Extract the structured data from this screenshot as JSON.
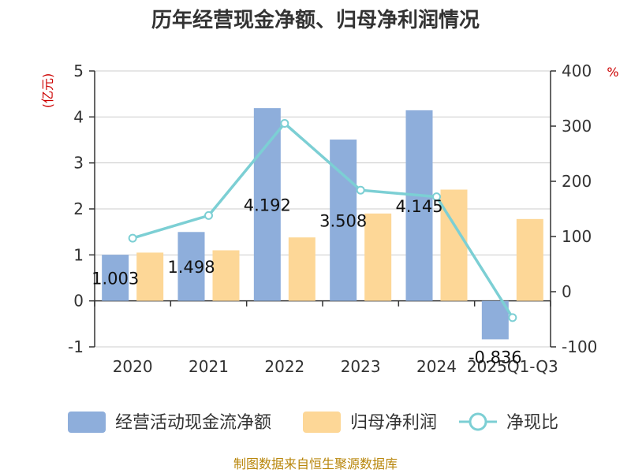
{
  "chart_data": {
    "type": "bar",
    "title": "历年经营现金净额、归母净利润情况",
    "categories": [
      "2020",
      "2021",
      "2022",
      "2023",
      "2024",
      "2025Q1-Q3"
    ],
    "series": [
      {
        "name": "经营活动现金流净额",
        "type": "bar",
        "axis": "left",
        "color": "#8eaedb",
        "values": [
          1.003,
          1.498,
          4.192,
          3.508,
          4.145,
          -0.836
        ]
      },
      {
        "name": "归母净利润",
        "type": "bar",
        "axis": "left",
        "color": "#fdd797",
        "values": [
          1.05,
          1.1,
          1.38,
          1.9,
          2.42,
          1.78
        ]
      },
      {
        "name": "净现比",
        "type": "line",
        "axis": "right",
        "color": "#7ccfd4",
        "values": [
          97,
          138,
          305,
          184,
          172,
          -47
        ]
      }
    ],
    "data_labels": [
      "1.003",
      "1.498",
      "4.192",
      "3.508",
      "4.145",
      "-0.836"
    ],
    "y_left": {
      "label": "(亿元)",
      "min": -1,
      "max": 5,
      "ticks": [
        -1,
        0,
        1,
        2,
        3,
        4,
        5
      ]
    },
    "y_right": {
      "label": "%",
      "min": -100,
      "max": 400,
      "ticks": [
        -100,
        0,
        100,
        200,
        300,
        400
      ]
    },
    "grid": true,
    "legend_position": "bottom"
  },
  "source": "制图数据来自恒生聚源数据库"
}
